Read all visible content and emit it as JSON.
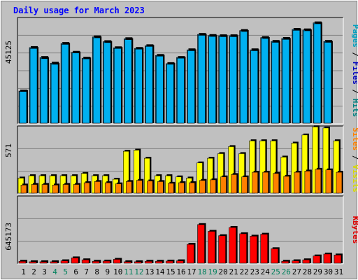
{
  "chart_data": [
    {
      "type": "bar",
      "panel": "pages-files-hits",
      "title": "Daily usage for March 2023",
      "categories": [
        "1",
        "2",
        "3",
        "4",
        "5",
        "6",
        "7",
        "8",
        "9",
        "10",
        "11",
        "12",
        "13",
        "14",
        "15",
        "16",
        "17",
        "18",
        "19",
        "20",
        "21",
        "22",
        "23",
        "24",
        "25",
        "26",
        "27",
        "28",
        "29",
        "30",
        "31"
      ],
      "weekend_categories": [
        "4",
        "5",
        "11",
        "12",
        "18",
        "19",
        "25",
        "26"
      ],
      "ylim": [
        0,
        45125
      ],
      "max_label": "45125",
      "ylabel_parts": [
        {
          "text": "Pages",
          "color": "#00a0c0"
        },
        {
          "text": " / ",
          "color": "#000000"
        },
        {
          "text": "Files",
          "color": "#0000c0"
        },
        {
          "text": " / ",
          "color": "#000000"
        },
        {
          "text": "Hits",
          "color": "#008080"
        }
      ],
      "series": [
        {
          "name": "Hits",
          "color": "#0070a0",
          "values": [
            14200,
            33400,
            29000,
            26500,
            35200,
            31300,
            28700,
            38100,
            36000,
            33300,
            37300,
            33000,
            34200,
            29900,
            26300,
            29000,
            32400,
            39200,
            38700,
            38600,
            38600,
            40900,
            32400,
            37800,
            36100,
            37400,
            41400,
            41200,
            44300,
            36100,
            null
          ]
        },
        {
          "name": "Files",
          "color": "#00b0f0",
          "values": [
            14000,
            33000,
            28500,
            26000,
            34800,
            31000,
            28400,
            37700,
            35600,
            33000,
            36900,
            32700,
            33900,
            29600,
            26000,
            28700,
            32000,
            38800,
            38300,
            38200,
            38200,
            40500,
            32000,
            37400,
            35700,
            37000,
            41000,
            40800,
            43900,
            35700,
            null
          ]
        }
      ]
    },
    {
      "type": "bar",
      "panel": "visits-sites",
      "ylim": [
        0,
        571
      ],
      "max_label": "571",
      "ylabel_parts": [
        {
          "text": "Sites",
          "color": "#ff8000"
        },
        {
          "text": " / ",
          "color": "#000000"
        },
        {
          "text": "Visits",
          "color": "#d8d800"
        }
      ],
      "series": [
        {
          "name": "Visits",
          "color": "#ffff00",
          "values": [
            130,
            150,
            150,
            150,
            150,
            150,
            170,
            150,
            150,
            120,
            360,
            370,
            300,
            150,
            150,
            140,
            130,
            260,
            300,
            340,
            400,
            340,
            450,
            450,
            450,
            310,
            430,
            500,
            570,
            560,
            450
          ]
        },
        {
          "name": "Sites",
          "color": "#ff8000",
          "values": [
            70,
            75,
            75,
            70,
            75,
            75,
            90,
            100,
            90,
            80,
            100,
            110,
            105,
            100,
            85,
            90,
            90,
            110,
            115,
            140,
            160,
            140,
            180,
            180,
            170,
            145,
            180,
            190,
            205,
            200,
            180
          ]
        }
      ]
    },
    {
      "type": "bar",
      "panel": "kbytes",
      "ylim": [
        0,
        645173
      ],
      "max_label": "645173",
      "ylabel_parts": [
        {
          "text": "KBytes",
          "color": "#e00000"
        }
      ],
      "series": [
        {
          "name": "KBytes",
          "color": "#ff0000",
          "values": [
            20000,
            15000,
            15000,
            15000,
            25000,
            55000,
            35000,
            20000,
            22000,
            40000,
            15000,
            15000,
            20000,
            20000,
            22000,
            25000,
            195000,
            400000,
            330000,
            285000,
            370000,
            305000,
            280000,
            300000,
            150000,
            20000,
            25000,
            35000,
            75000,
            95000,
            85000
          ]
        }
      ]
    }
  ],
  "colors": {
    "background": "#c0c0c0",
    "panel_border_dark": "#000000",
    "panel_border_light": "#ffffff",
    "title": "#0000ff",
    "weekday_label": "#000000",
    "weekend_label": "#00805c"
  }
}
